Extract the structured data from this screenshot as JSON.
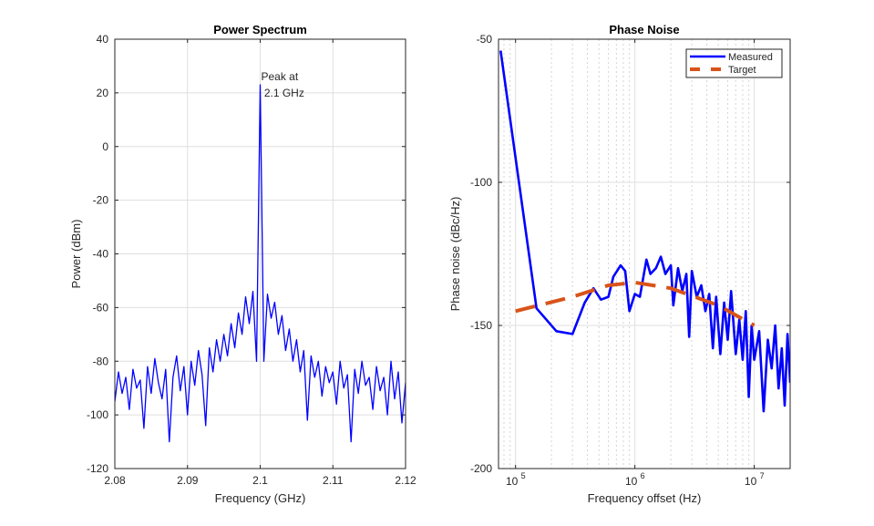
{
  "chart_data": [
    {
      "type": "line",
      "title": "Power Spectrum",
      "xlabel": "Frequency (GHz)",
      "ylabel": "Power (dBm)",
      "xlim": [
        2.08,
        2.12
      ],
      "ylim": [
        -120,
        40
      ],
      "xticks": [
        2.08,
        2.09,
        2.1,
        2.11,
        2.12
      ],
      "xtick_labels": [
        "2.08",
        "2.09",
        "2.1",
        "2.11",
        "2.12"
      ],
      "yticks": [
        -120,
        -100,
        -80,
        -60,
        -40,
        -20,
        0,
        20,
        40
      ],
      "ytick_labels": [
        "-120",
        "-100",
        "-80",
        "-60",
        "-40",
        "-20",
        "0",
        "20",
        "40"
      ],
      "grid": true,
      "annotation": {
        "line1": "Peak at",
        "line2": " 2.1 GHz",
        "x": 2.1,
        "y": 23
      },
      "series": [
        {
          "name": "spectrum",
          "color": "#0000ff",
          "x_start": 2.08,
          "x_step": 0.0005,
          "values": [
            -95,
            -84,
            -92,
            -86,
            -98,
            -83,
            -90,
            -87,
            -105,
            -82,
            -92,
            -79,
            -88,
            -94,
            -83,
            -110,
            -86,
            -78,
            -91,
            -82,
            -100,
            -80,
            -89,
            -76,
            -85,
            -104,
            -75,
            -84,
            -72,
            -80,
            -70,
            -78,
            -66,
            -75,
            -62,
            -70,
            -56,
            -66,
            -54,
            -80,
            23,
            -80,
            -55,
            -64,
            -58,
            -70,
            -63,
            -76,
            -68,
            -80,
            -72,
            -84,
            -76,
            -102,
            -78,
            -86,
            -80,
            -93,
            -82,
            -88,
            -84,
            -96,
            -80,
            -90,
            -85,
            -110,
            -83,
            -92,
            -80,
            -89,
            -86,
            -98,
            -82,
            -91,
            -86,
            -100,
            -80,
            -94,
            -84,
            -103,
            -88
          ]
        }
      ]
    },
    {
      "type": "line",
      "title": "Phase Noise",
      "xlabel": "Frequency offset (Hz)",
      "ylabel": "Phase noise (dBc/Hz)",
      "xscale": "log",
      "xlim": [
        72000,
        20000000
      ],
      "ylim": [
        -200,
        -50
      ],
      "xticks": [
        100000,
        1000000,
        10000000
      ],
      "xtick_labels": [
        {
          "base": "10",
          "exp": "5"
        },
        {
          "base": "10",
          "exp": "6"
        },
        {
          "base": "10",
          "exp": "7"
        }
      ],
      "yticks": [
        -200,
        -150,
        -100,
        -50
      ],
      "ytick_labels": [
        "-200",
        "-150",
        "-100",
        "-50"
      ],
      "grid": true,
      "legend": {
        "position": "top-right",
        "entries": [
          "Measured",
          "Target"
        ]
      },
      "series": [
        {
          "name": "Measured",
          "color": "#0000ff",
          "style": "solid",
          "points": [
            [
              75000,
              -54
            ],
            [
              150000,
              -144
            ],
            [
              220000,
              -152
            ],
            [
              300000,
              -153
            ],
            [
              380000,
              -142
            ],
            [
              450000,
              -137
            ],
            [
              520000,
              -141
            ],
            [
              600000,
              -140
            ],
            [
              660000,
              -133
            ],
            [
              760000,
              -129
            ],
            [
              830000,
              -131
            ],
            [
              900000,
              -145
            ],
            [
              1000000,
              -139
            ],
            [
              1100000,
              -140
            ],
            [
              1250000,
              -127
            ],
            [
              1350000,
              -132
            ],
            [
              1500000,
              -130
            ],
            [
              1650000,
              -126
            ],
            [
              1800000,
              -132
            ],
            [
              2000000,
              -129
            ],
            [
              2100000,
              -143
            ],
            [
              2300000,
              -130
            ],
            [
              2500000,
              -138
            ],
            [
              2700000,
              -132
            ],
            [
              2850000,
              -154
            ],
            [
              3000000,
              -131
            ],
            [
              3300000,
              -140
            ],
            [
              3600000,
              -136
            ],
            [
              3900000,
              -145
            ],
            [
              4200000,
              -139
            ],
            [
              4500000,
              -158
            ],
            [
              4800000,
              -140
            ],
            [
              5200000,
              -160
            ],
            [
              5600000,
              -142
            ],
            [
              6000000,
              -155
            ],
            [
              6400000,
              -138
            ],
            [
              7000000,
              -160
            ],
            [
              7500000,
              -148
            ],
            [
              8000000,
              -162
            ],
            [
              8500000,
              -145
            ],
            [
              9000000,
              -175
            ],
            [
              9500000,
              -150
            ],
            [
              10000000,
              -162
            ],
            [
              11000000,
              -152
            ],
            [
              12000000,
              -180
            ],
            [
              13000000,
              -155
            ],
            [
              14000000,
              -165
            ],
            [
              15000000,
              -150
            ],
            [
              16000000,
              -172
            ],
            [
              17000000,
              -158
            ],
            [
              18000000,
              -178
            ],
            [
              19000000,
              -153
            ],
            [
              20000000,
              -170
            ]
          ]
        },
        {
          "name": "Target",
          "color": "#d95319",
          "style": "dashed",
          "points": [
            [
              100000,
              -145
            ],
            [
              300000,
              -140
            ],
            [
              600000,
              -136
            ],
            [
              1000000,
              -135
            ],
            [
              2000000,
              -137
            ],
            [
              5000000,
              -143
            ],
            [
              10000000,
              -150
            ]
          ]
        }
      ]
    }
  ]
}
